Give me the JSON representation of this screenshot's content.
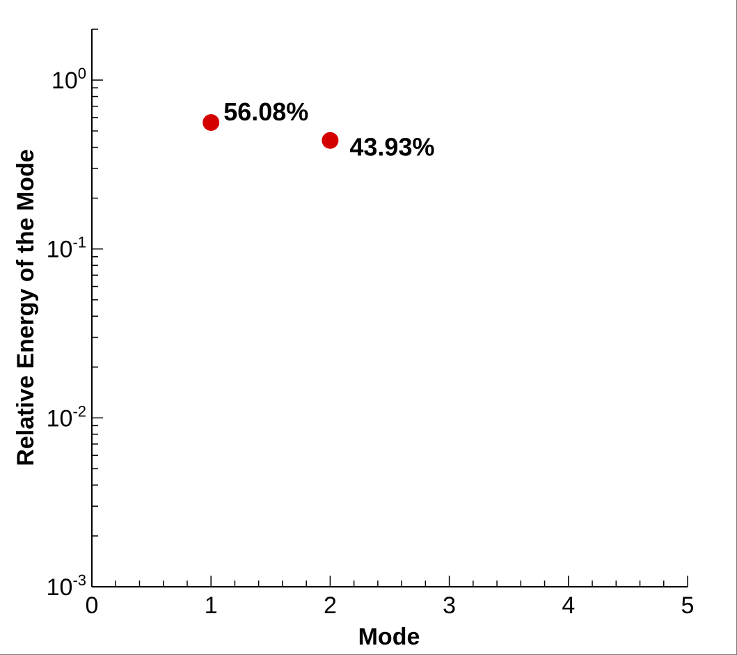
{
  "chart_data": {
    "type": "scatter",
    "title": "",
    "xlabel": "Mode",
    "ylabel": "Relative Energy of the Mode",
    "xlim": [
      0,
      5
    ],
    "ylim": [
      0.001,
      2
    ],
    "y_scale": "log",
    "x_ticks": [
      "0",
      "1",
      "2",
      "3",
      "4",
      "5"
    ],
    "y_ticks": [
      {
        "base": "10",
        "exp": "0",
        "value": 1
      },
      {
        "base": "10",
        "exp": "-1",
        "value": 0.1
      },
      {
        "base": "10",
        "exp": "-2",
        "value": 0.01
      },
      {
        "base": "10",
        "exp": "-3",
        "value": 0.001
      }
    ],
    "grid": false,
    "marker_color": "#d40000",
    "points": [
      {
        "x": 1,
        "y": 0.5608,
        "label": "56.08%"
      },
      {
        "x": 2,
        "y": 0.4393,
        "label": "43.93%"
      }
    ]
  }
}
